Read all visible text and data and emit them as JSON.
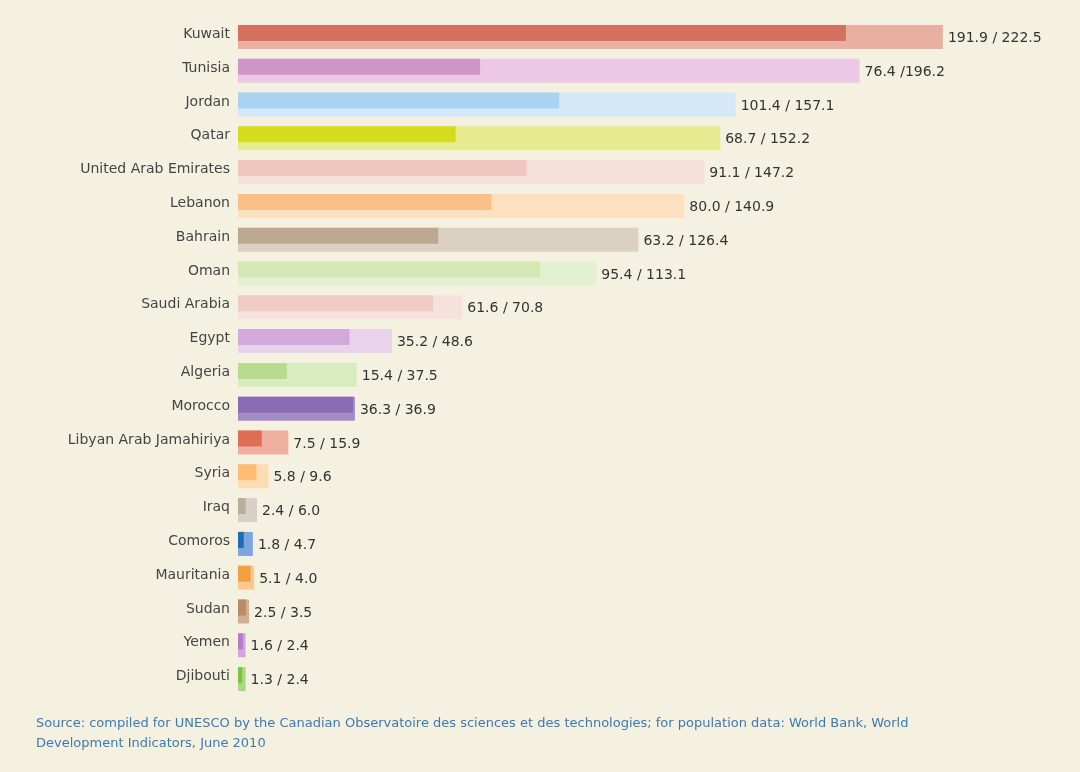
{
  "chart_data": {
    "type": "bar",
    "orientation": "horizontal",
    "tick_labels": "y",
    "categories": [
      "Kuwait",
      "Tunisia",
      "Jordan",
      "Qatar",
      "United Arab Emirates",
      "Lebanon",
      "Bahrain",
      "Oman",
      "Saudi Arabia",
      "Egypt",
      "Algeria",
      "Morocco",
      "Libyan Arab Jamahiriya",
      "Syria",
      "Iraq",
      "Comoros",
      "Mauritania",
      "Sudan",
      "Yemen",
      "Djibouti"
    ],
    "series": [
      {
        "values": [
          191.9,
          76.4,
          101.4,
          68.7,
          91.1,
          80.0,
          63.2,
          95.4,
          61.6,
          35.2,
          15.4,
          36.3,
          7.5,
          5.8,
          2.4,
          1.8,
          5.1,
          2.5,
          1.6,
          1.3
        ],
        "colors": [
          "#d4705f",
          "#cf94c8",
          "#a9d3f0",
          "#d5dc1e",
          "#f0c8c0",
          "#fbc085",
          "#bba88f",
          "#d3e8b5",
          "#f0cbc4",
          "#d3a9db",
          "#b7dc8f",
          "#8a6bb2",
          "#df6e55",
          "#fdbd72",
          "#b9ad9b",
          "#1d6db5",
          "#fcc890",
          "#b88c60",
          "#b77bc7",
          "#7cc243"
        ]
      },
      {
        "values": [
          222.5,
          196.2,
          157.1,
          152.2,
          147.2,
          140.9,
          126.4,
          113.1,
          70.8,
          48.6,
          37.5,
          36.9,
          15.9,
          9.6,
          6.0,
          4.7,
          4.0,
          3.5,
          2.4,
          2.4
        ],
        "colors": [
          "#e9b0a2",
          "#ecc8e6",
          "#d4e8f7",
          "#e6eb90",
          "#f5e0da",
          "#fce0c0",
          "#dcd0c2",
          "#e3f0d0",
          "#f6e2dc",
          "#e8d2ec",
          "#d9ecc0",
          "#a48cc6",
          "#edb0a0",
          "#fddcb4",
          "#d8d0c4",
          "#7aa6dc",
          "#f0a040",
          "#d0b090",
          "#d0a8dc",
          "#a8d880"
        ],
        "value_labels": [
          "191.9 / 222.5",
          "76.4 /196.2",
          "101.4 / 157.1",
          "68.7 / 152.2",
          "91.1 / 147.2",
          "80.0 / 140.9",
          "63.2 / 126.4",
          "95.4 / 113.1",
          "61.6 / 70.8",
          "35.2 / 48.6",
          "15.4 / 37.5",
          "36.3 / 36.9",
          "7.5 / 15.9",
          "5.8 / 9.6",
          "2.4 / 6.0",
          "1.8 / 4.7",
          "5.1 / 4.0",
          "2.5 / 3.5",
          "1.6 / 2.4",
          "1.3 / 2.4"
        ]
      }
    ],
    "annotations": [
      "Source: compiled for UNESCO by the Canadian Observatoire des sciences et des technologies; for population data: World Bank, World Development Indicators, June 2010"
    ]
  }
}
